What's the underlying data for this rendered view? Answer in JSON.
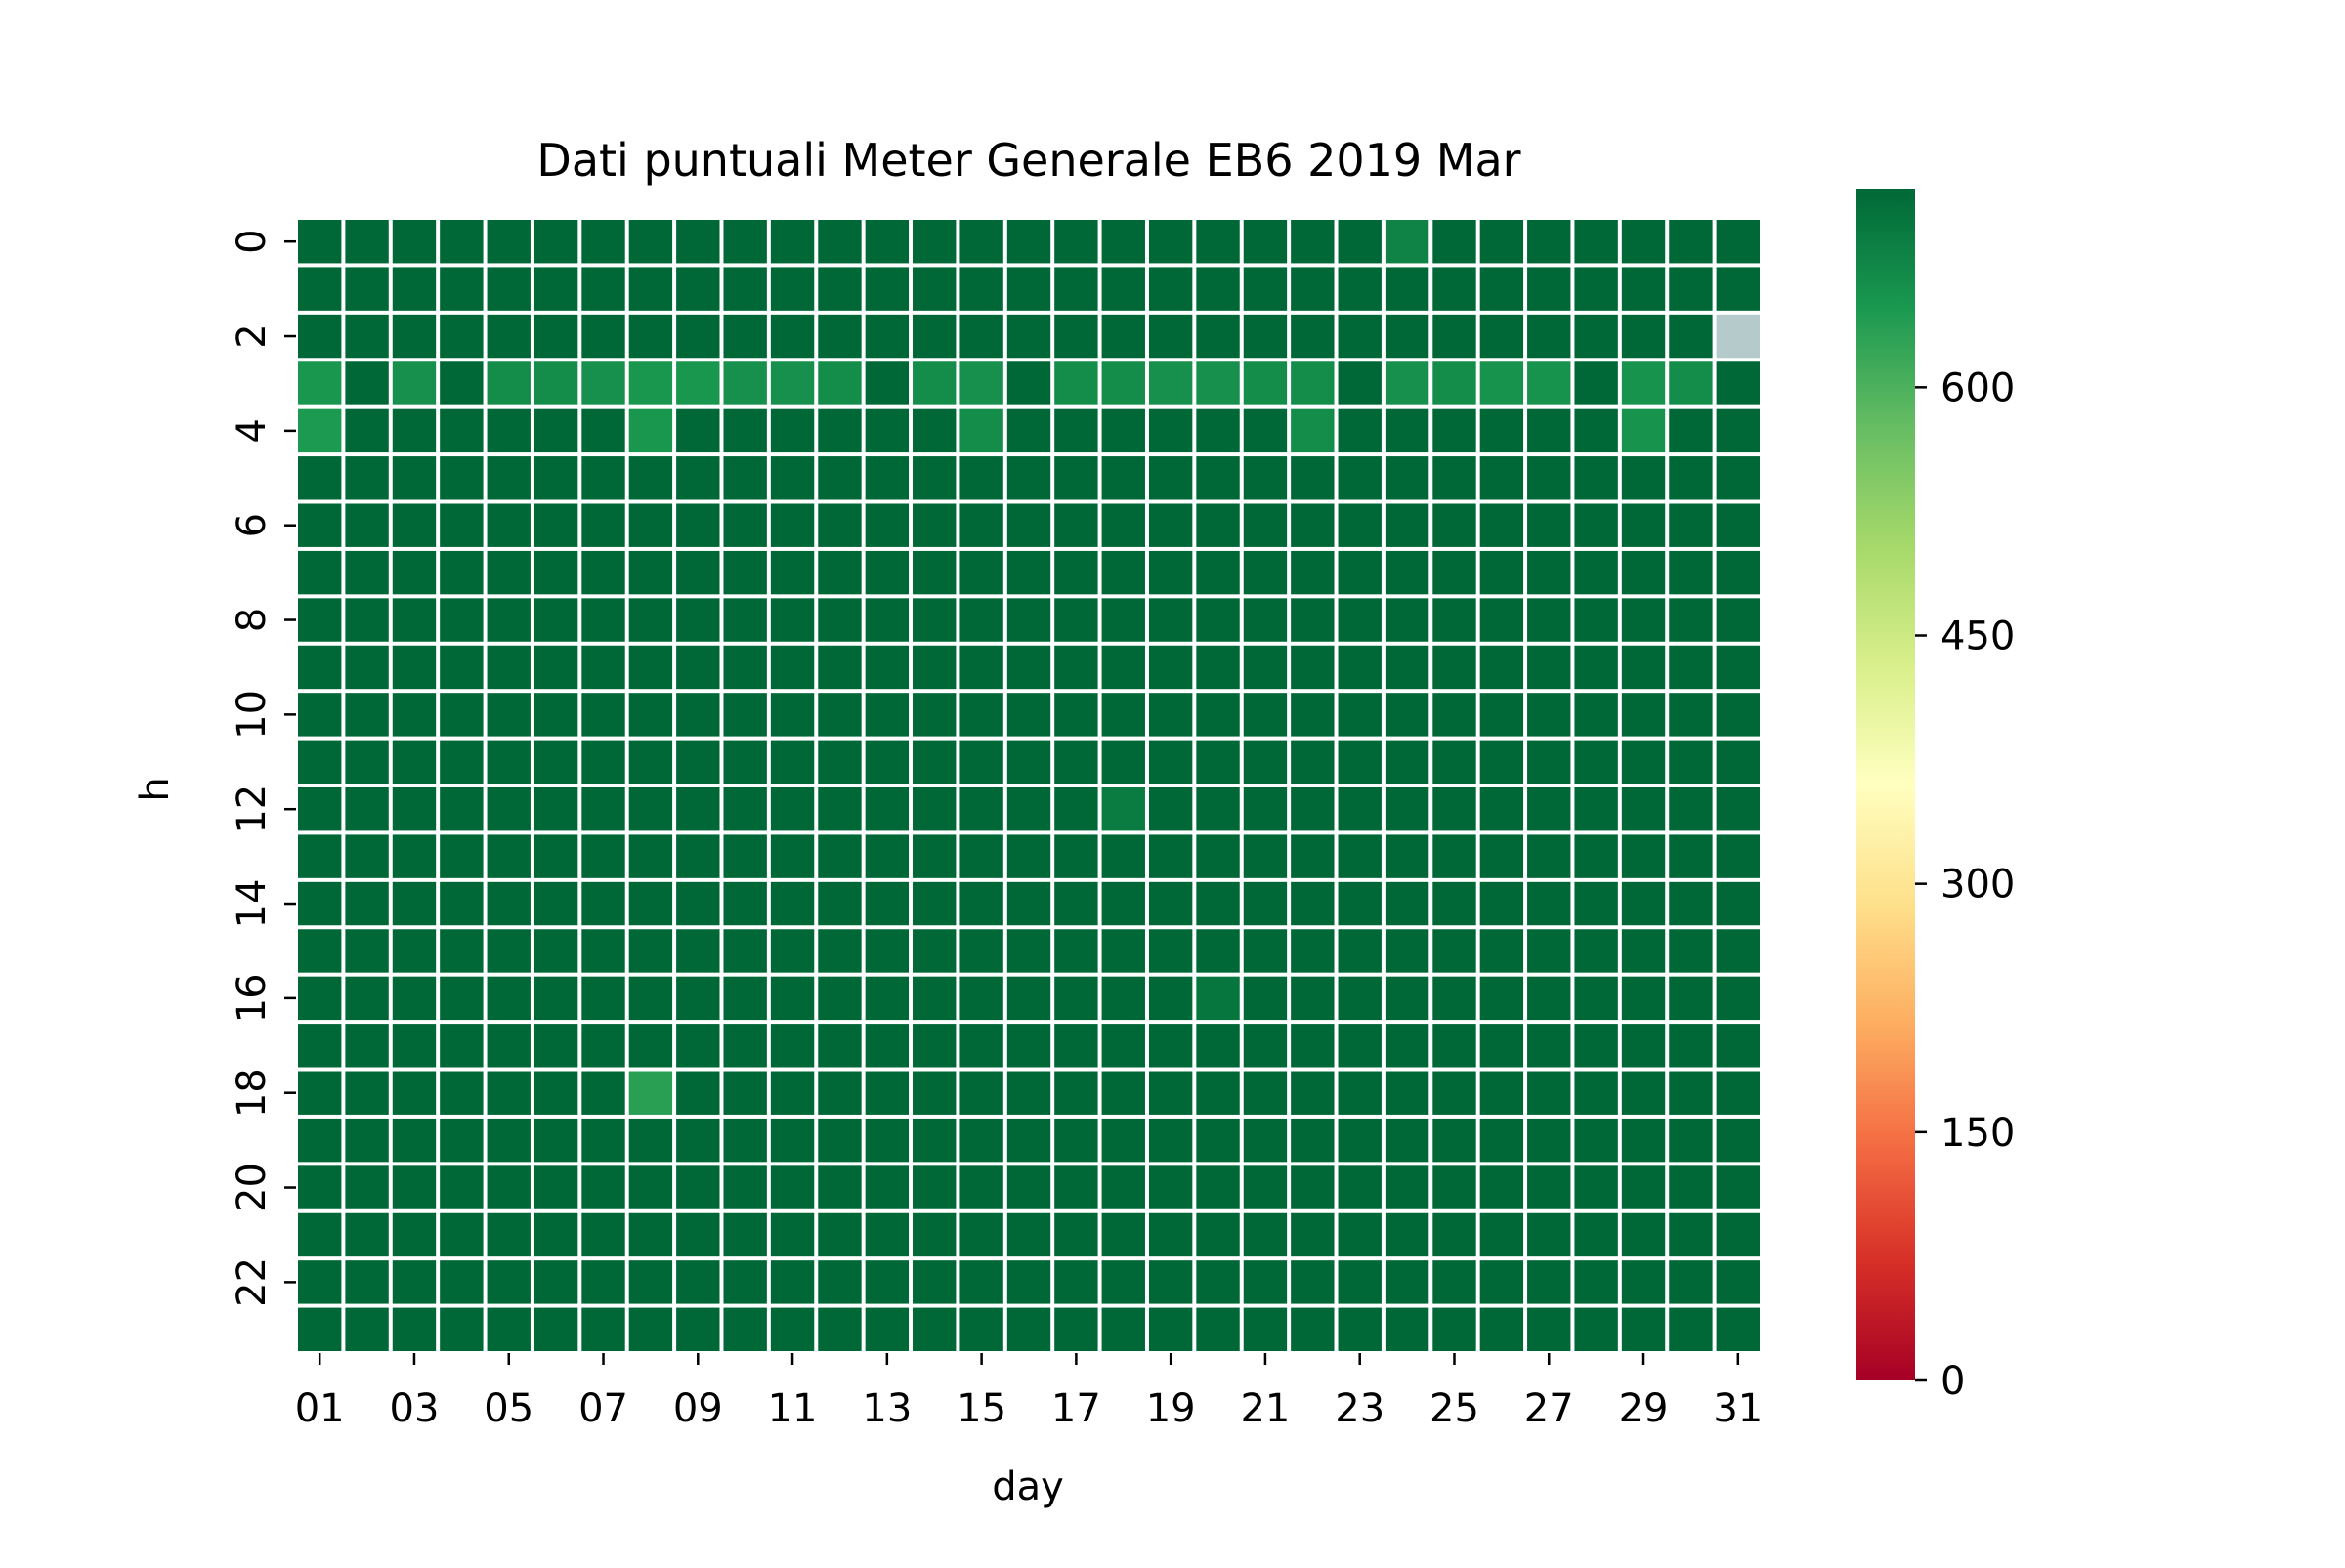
{
  "chart_data": {
    "type": "heatmap",
    "title": "Dati puntuali Meter Generale EB6 2019 Mar",
    "xlabel": "day",
    "ylabel": "h",
    "x": [
      "01",
      "02",
      "03",
      "04",
      "05",
      "06",
      "07",
      "08",
      "09",
      "10",
      "11",
      "12",
      "13",
      "14",
      "15",
      "16",
      "17",
      "18",
      "19",
      "20",
      "21",
      "22",
      "23",
      "24",
      "25",
      "26",
      "27",
      "28",
      "29",
      "30",
      "31"
    ],
    "x_tick_labels": [
      "01",
      "03",
      "05",
      "07",
      "09",
      "11",
      "13",
      "15",
      "17",
      "19",
      "21",
      "23",
      "25",
      "27",
      "29",
      "31"
    ],
    "y": [
      "0",
      "1",
      "2",
      "3",
      "4",
      "5",
      "6",
      "7",
      "8",
      "9",
      "10",
      "11",
      "12",
      "13",
      "14",
      "15",
      "16",
      "17",
      "18",
      "19",
      "20",
      "21",
      "22",
      "23"
    ],
    "y_tick_labels": [
      "0",
      "2",
      "4",
      "6",
      "8",
      "10",
      "12",
      "14",
      "16",
      "18",
      "20",
      "22"
    ],
    "colorbar": {
      "colormap": "RdYlGn",
      "vmin": 0,
      "vmax": 720,
      "ticks": [
        "0",
        "150",
        "300",
        "450",
        "600"
      ]
    },
    "default_value": 720,
    "cell_overrides": [
      {
        "h": 2,
        "day": 31,
        "value": null,
        "note_color": "#b5cbcb"
      },
      {
        "h": 3,
        "day": 1,
        "value": 650
      },
      {
        "h": 3,
        "day": 3,
        "value": 660
      },
      {
        "h": 3,
        "day": 5,
        "value": 665
      },
      {
        "h": 3,
        "day": 6,
        "value": 665
      },
      {
        "h": 3,
        "day": 7,
        "value": 660
      },
      {
        "h": 3,
        "day": 8,
        "value": 650
      },
      {
        "h": 3,
        "day": 9,
        "value": 650
      },
      {
        "h": 3,
        "day": 10,
        "value": 660
      },
      {
        "h": 3,
        "day": 11,
        "value": 660
      },
      {
        "h": 3,
        "day": 12,
        "value": 665
      },
      {
        "h": 3,
        "day": 14,
        "value": 665
      },
      {
        "h": 3,
        "day": 15,
        "value": 660
      },
      {
        "h": 3,
        "day": 17,
        "value": 665
      },
      {
        "h": 3,
        "day": 18,
        "value": 665
      },
      {
        "h": 3,
        "day": 19,
        "value": 660
      },
      {
        "h": 3,
        "day": 20,
        "value": 660
      },
      {
        "h": 3,
        "day": 21,
        "value": 665
      },
      {
        "h": 3,
        "day": 22,
        "value": 665
      },
      {
        "h": 3,
        "day": 24,
        "value": 660
      },
      {
        "h": 3,
        "day": 25,
        "value": 665
      },
      {
        "h": 3,
        "day": 26,
        "value": 655
      },
      {
        "h": 3,
        "day": 27,
        "value": 655
      },
      {
        "h": 3,
        "day": 29,
        "value": 655
      },
      {
        "h": 3,
        "day": 30,
        "value": 665
      },
      {
        "h": 4,
        "day": 1,
        "value": 645
      },
      {
        "h": 4,
        "day": 8,
        "value": 650
      },
      {
        "h": 4,
        "day": 15,
        "value": 665
      },
      {
        "h": 4,
        "day": 22,
        "value": 665
      },
      {
        "h": 4,
        "day": 29,
        "value": 655
      },
      {
        "h": 0,
        "day": 24,
        "value": 680
      },
      {
        "h": 12,
        "day": 18,
        "value": 690
      },
      {
        "h": 16,
        "day": 20,
        "value": 700
      },
      {
        "h": 18,
        "day": 8,
        "value": 635
      }
    ],
    "grid": false,
    "legend": "colorbar-right"
  },
  "colors": {
    "cell_gap": "#ffffff",
    "missing": "#b5cbcb"
  }
}
